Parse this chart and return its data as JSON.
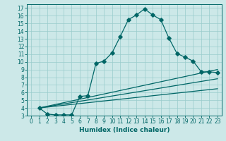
{
  "bg_color": "#cce8e8",
  "grid_color": "#99cccc",
  "line_color": "#006666",
  "spine_color": "#006666",
  "xlim": [
    -0.5,
    23.5
  ],
  "ylim": [
    3,
    17.5
  ],
  "xticks": [
    0,
    1,
    2,
    3,
    4,
    5,
    6,
    7,
    8,
    9,
    10,
    11,
    12,
    13,
    14,
    15,
    16,
    17,
    18,
    19,
    20,
    21,
    22,
    23
  ],
  "yticks": [
    3,
    4,
    5,
    6,
    7,
    8,
    9,
    10,
    11,
    12,
    13,
    14,
    15,
    16,
    17
  ],
  "xlabel": "Humidex (Indice chaleur)",
  "curve1_x": [
    1,
    2,
    3,
    4,
    5,
    6,
    7,
    8,
    9,
    10,
    11,
    12,
    13,
    14,
    15,
    16,
    17,
    18,
    19,
    20,
    21,
    22,
    23
  ],
  "curve1_y": [
    4.0,
    3.2,
    3.1,
    3.1,
    3.1,
    5.5,
    5.6,
    9.8,
    10.1,
    11.2,
    13.3,
    15.5,
    16.1,
    16.9,
    16.1,
    15.5,
    13.1,
    11.1,
    10.6,
    10.1,
    8.7,
    8.7,
    8.6
  ],
  "line2_x": [
    1,
    23
  ],
  "line2_y": [
    4.0,
    9.0
  ],
  "line3_x": [
    1,
    23
  ],
  "line3_y": [
    4.0,
    7.8
  ],
  "line4_x": [
    1,
    23
  ],
  "line4_y": [
    4.0,
    6.5
  ],
  "tick_fontsize": 5.5,
  "xlabel_fontsize": 6.5,
  "figsize": [
    3.2,
    2.0
  ],
  "dpi": 100
}
